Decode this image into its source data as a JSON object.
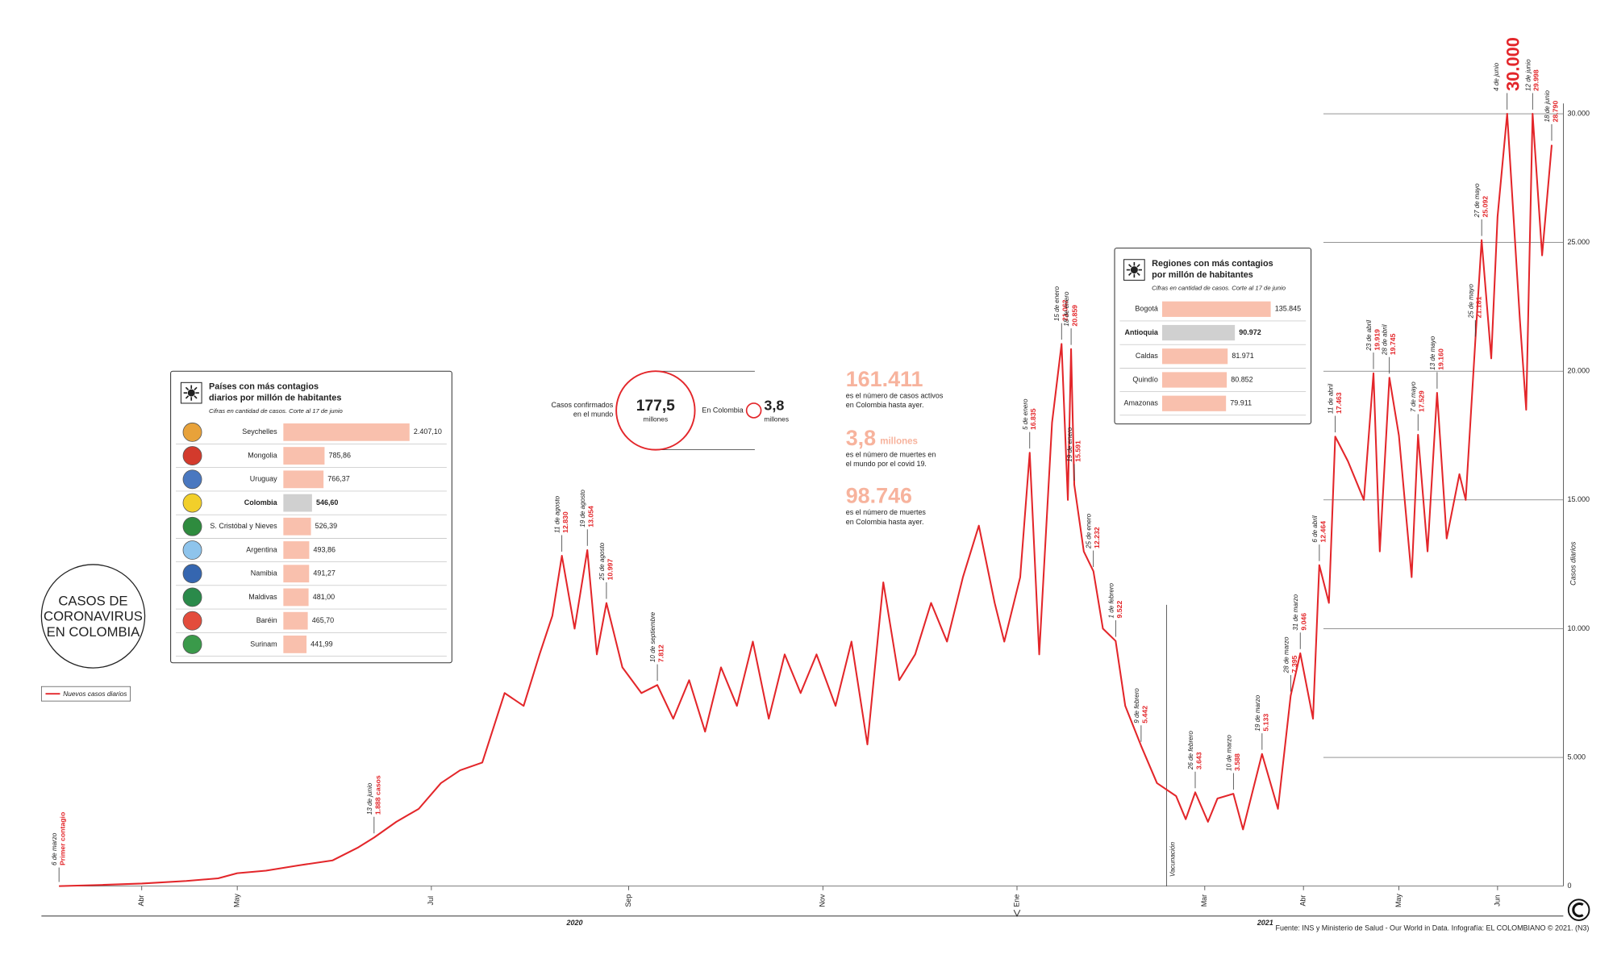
{
  "chart_data": {
    "type": "line",
    "title": [
      "CASOS DE",
      "CORONAVIRUS",
      "EN COLOMBIA"
    ],
    "y_label": "Casos diarios",
    "source": "Fuente: INS y Ministerio de Salud - Our World in Data. Infografía: EL COLOMBIANO © 2021. (N3)",
    "years": [
      {
        "value": "2020-08-15",
        "label": "2020"
      },
      {
        "value": "2021-03-20",
        "label": "2021"
      }
    ],
    "xlim": [
      "2020-03-06",
      "2021-06-21"
    ],
    "xticks": [
      {
        "value": "2020-04-01",
        "label": "Abr"
      },
      {
        "value": "2020-05-01",
        "label": "May"
      },
      {
        "value": "2020-07-01",
        "label": "Jul"
      },
      {
        "value": "2020-09-01",
        "label": "Sep"
      },
      {
        "value": "2020-11-01",
        "label": "Nov"
      },
      {
        "value": "2021-01-01",
        "label": "Ene"
      },
      {
        "value": "2021-03-01",
        "label": "Mar"
      },
      {
        "value": "2021-04-01",
        "label": "Abr"
      },
      {
        "value": "2021-05-01",
        "label": "May"
      },
      {
        "value": "2021-06-01",
        "label": "Jun"
      }
    ],
    "ylim": [
      0,
      30000
    ],
    "yticks": [
      0,
      {
        "value": 5000,
        "label": "5.000"
      },
      {
        "value": 10000,
        "label": "10.000"
      },
      {
        "value": 15000,
        "label": "15.000"
      },
      {
        "value": 20000,
        "label": "20.000"
      },
      {
        "value": 25000,
        "label": "25.000"
      },
      {
        "value": 30000,
        "label": "30.000"
      }
    ],
    "grid": true,
    "series": [
      {
        "name": "Nuevos casos diarios",
        "color": "#e3262a",
        "x": [
          "2020-03-06",
          "2020-03-20",
          "2020-04-01",
          "2020-04-15",
          "2020-04-25",
          "2020-05-01",
          "2020-05-10",
          "2020-05-20",
          "2020-05-31",
          "2020-06-08",
          "2020-06-13",
          "2020-06-20",
          "2020-06-27",
          "2020-07-04",
          "2020-07-10",
          "2020-07-17",
          "2020-07-24",
          "2020-07-30",
          "2020-08-04",
          "2020-08-08",
          "2020-08-11",
          "2020-08-15",
          "2020-08-19",
          "2020-08-22",
          "2020-08-25",
          "2020-08-30",
          "2020-09-05",
          "2020-09-10",
          "2020-09-15",
          "2020-09-20",
          "2020-09-25",
          "2020-09-30",
          "2020-10-05",
          "2020-10-10",
          "2020-10-15",
          "2020-10-20",
          "2020-10-25",
          "2020-10-30",
          "2020-11-05",
          "2020-11-10",
          "2020-11-15",
          "2020-11-20",
          "2020-11-25",
          "2020-11-30",
          "2020-12-05",
          "2020-12-10",
          "2020-12-15",
          "2020-12-20",
          "2020-12-25",
          "2020-12-28",
          "2021-01-02",
          "2021-01-05",
          "2021-01-08",
          "2021-01-12",
          "2021-01-15",
          "2021-01-17",
          "2021-01-18",
          "2021-01-19",
          "2021-01-22",
          "2021-01-25",
          "2021-01-28",
          "2021-02-01",
          "2021-02-04",
          "2021-02-09",
          "2021-02-14",
          "2021-02-20",
          "2021-02-23",
          "2021-02-26",
          "2021-03-02",
          "2021-03-05",
          "2021-03-10",
          "2021-03-13",
          "2021-03-19",
          "2021-03-24",
          "2021-03-28",
          "2021-03-31",
          "2021-04-04",
          "2021-04-06",
          "2021-04-09",
          "2021-04-11",
          "2021-04-15",
          "2021-04-20",
          "2021-04-23",
          "2021-04-25",
          "2021-04-28",
          "2021-05-01",
          "2021-05-05",
          "2021-05-07",
          "2021-05-10",
          "2021-05-13",
          "2021-05-16",
          "2021-05-20",
          "2021-05-22",
          "2021-05-25",
          "2021-05-27",
          "2021-05-30",
          "2021-06-01",
          "2021-06-04",
          "2021-06-08",
          "2021-06-10",
          "2021-06-12",
          "2021-06-15",
          "2021-06-18"
        ],
        "values": [
          1,
          50,
          100,
          200,
          300,
          500,
          600,
          800,
          1000,
          1500,
          1888,
          2500,
          3000,
          4000,
          4500,
          4800,
          7500,
          7000,
          9000,
          10500,
          12830,
          10000,
          13054,
          9000,
          10997,
          8500,
          7500,
          7812,
          6500,
          8000,
          6000,
          8500,
          7000,
          9500,
          6500,
          9000,
          7500,
          9000,
          7000,
          9500,
          5500,
          11800,
          8000,
          9000,
          11000,
          9500,
          12000,
          14000,
          11000,
          9500,
          12000,
          16835,
          9000,
          18000,
          21062,
          15000,
          20859,
          15591,
          13000,
          12232,
          10000,
          9522,
          7000,
          5442,
          4000,
          3500,
          2600,
          3643,
          2500,
          3400,
          3588,
          2200,
          5133,
          3000,
          7395,
          9046,
          6500,
          12464,
          11000,
          17463,
          16500,
          15000,
          19919,
          13000,
          19745,
          17500,
          12000,
          17529,
          13000,
          19160,
          13500,
          16000,
          15000,
          21181,
          25092,
          20500,
          26000,
          30000,
          22000,
          18500,
          29998,
          24500,
          28790
        ]
      }
    ],
    "event": {
      "x": "2021-02-17",
      "label": "Vacunación"
    },
    "annotations": [
      {
        "x": "2020-03-06",
        "date": "6 de marzo",
        "label": "Primer contagio"
      },
      {
        "x": "2020-06-13",
        "date": "13 de junio",
        "value": 1888,
        "label": "1.888 casos"
      },
      {
        "x": "2020-08-11",
        "date": "11 de agosto",
        "value": 12830,
        "label": "12.830"
      },
      {
        "x": "2020-08-19",
        "date": "19 de agosto",
        "value": 13054,
        "label": "13.054"
      },
      {
        "x": "2020-08-25",
        "date": "25 de agosto",
        "value": 10997,
        "label": "10.997"
      },
      {
        "x": "2020-09-10",
        "date": "10 de septiembre",
        "value": 7812,
        "label": "7.812"
      },
      {
        "x": "2021-01-05",
        "date": "5 de enero",
        "value": 16835,
        "label": "16.835"
      },
      {
        "x": "2021-01-15",
        "date": "15 de enero",
        "value": 21062,
        "label": "21.062"
      },
      {
        "x": "2021-01-18",
        "date": "18 de enero",
        "value": 20859,
        "label": "20.859"
      },
      {
        "x": "2021-01-19",
        "date": "19 de enero",
        "value": 15591,
        "label": "15.591"
      },
      {
        "x": "2021-01-25",
        "date": "25 de enero",
        "value": 12232,
        "label": "12.232"
      },
      {
        "x": "2021-02-01",
        "date": "1 de febrero",
        "value": 9522,
        "label": "9.522"
      },
      {
        "x": "2021-02-09",
        "date": "9 de febrero",
        "value": 5442,
        "label": "5.442"
      },
      {
        "x": "2021-02-26",
        "date": "26 de febrero",
        "value": 3643,
        "label": "3.643"
      },
      {
        "x": "2021-03-10",
        "date": "10 de marzo",
        "value": 3588,
        "label": "3.588"
      },
      {
        "x": "2021-03-19",
        "date": "19 de marzo",
        "value": 5133,
        "label": "5.133"
      },
      {
        "x": "2021-03-28",
        "date": "28 de marzo",
        "value": 7395,
        "label": "7.395"
      },
      {
        "x": "2021-03-31",
        "date": "31 de marzo",
        "value": 9046,
        "label": "9.046"
      },
      {
        "x": "2021-04-06",
        "date": "6 de abril",
        "value": 12464,
        "label": "12.464"
      },
      {
        "x": "2021-04-11",
        "date": "11 de abril",
        "value": 17463,
        "label": "17.463"
      },
      {
        "x": "2021-04-23",
        "date": "23 de abril",
        "value": 19919,
        "label": "19.919"
      },
      {
        "x": "2021-04-28",
        "date": "28 de abril",
        "value": 19745,
        "label": "19.745"
      },
      {
        "x": "2021-05-07",
        "date": "7 de mayo",
        "value": 17529,
        "label": "17.529"
      },
      {
        "x": "2021-05-13",
        "date": "13 de mayo",
        "value": 19160,
        "label": "19.160"
      },
      {
        "x": "2021-05-25",
        "date": "25 de mayo",
        "value": 21181,
        "label": "21.181"
      },
      {
        "x": "2021-05-27",
        "date": "27 de mayo",
        "value": 25092,
        "label": "25.092"
      },
      {
        "x": "2021-06-04",
        "date": "4 de junio",
        "value": 30000,
        "label": "30.000",
        "emphasis": true
      },
      {
        "x": "2021-06-12",
        "date": "12 de junio",
        "value": 29998,
        "label": "29.998"
      },
      {
        "x": "2021-06-18",
        "date": "18 de junio",
        "value": 28790,
        "label": "28.790"
      }
    ]
  },
  "countries": {
    "title": [
      "Países con más contagios",
      "diarios por millón de habitantes"
    ],
    "subtitle": "Cifras en cantidad de casos. Corte al 17 de junio",
    "color": "#f9c0ad",
    "highlight_color": "#d0d0d0",
    "highlight": "Colombia",
    "rows": [
      {
        "name": "Seychelles",
        "value": 2407.1,
        "label": "2.407,10"
      },
      {
        "name": "Mongolia",
        "value": 785.86,
        "label": "785,86"
      },
      {
        "name": "Uruguay",
        "value": 766.37,
        "label": "766,37"
      },
      {
        "name": "Colombia",
        "value": 546.6,
        "label": "546,60"
      },
      {
        "name": "S. Cristóbal y Nieves",
        "value": 526.39,
        "label": "526,39"
      },
      {
        "name": "Argentina",
        "value": 493.86,
        "label": "493,86"
      },
      {
        "name": "Namibia",
        "value": 491.27,
        "label": "491,27"
      },
      {
        "name": "Maldivas",
        "value": 481.0,
        "label": "481,00"
      },
      {
        "name": "Baréin",
        "value": 465.7,
        "label": "465,70"
      },
      {
        "name": "Surinam",
        "value": 441.99,
        "label": "441,99"
      }
    ]
  },
  "regions": {
    "title": [
      "Regiones con más contagios",
      "por millón de habitantes"
    ],
    "subtitle": "Cifras en cantidad de casos. Corte al 17 de junio",
    "color": "#f9c0ad",
    "highlight_color": "#d0d0d0",
    "highlight": "Antioquia",
    "rows": [
      {
        "name": "Bogotá",
        "value": 135845,
        "label": "135.845"
      },
      {
        "name": "Antioquia",
        "value": 90972,
        "label": "90.972"
      },
      {
        "name": "Caldas",
        "value": 81971,
        "label": "81.971"
      },
      {
        "name": "Quindío",
        "value": 80852,
        "label": "80.852"
      },
      {
        "name": "Amazonas",
        "value": 79911,
        "label": "79.911"
      }
    ]
  },
  "world": {
    "caption": [
      "Casos confirmados",
      "en el mundo"
    ],
    "value": "177,5",
    "unit": "millones"
  },
  "colombia": {
    "caption": "En Colombia",
    "value": "3,8",
    "unit": "millones"
  },
  "stats": [
    {
      "value": "161.411",
      "text": [
        "es el número de casos activos",
        "en Colombia hasta ayer."
      ]
    },
    {
      "value": "3,8",
      "unit": "millones",
      "text": [
        "es el número de muertes en",
        "el mundo por el covid 19."
      ]
    },
    {
      "value": "98.746",
      "text": [
        "es el número de muertes",
        "en Colombia hasta ayer."
      ]
    }
  ]
}
